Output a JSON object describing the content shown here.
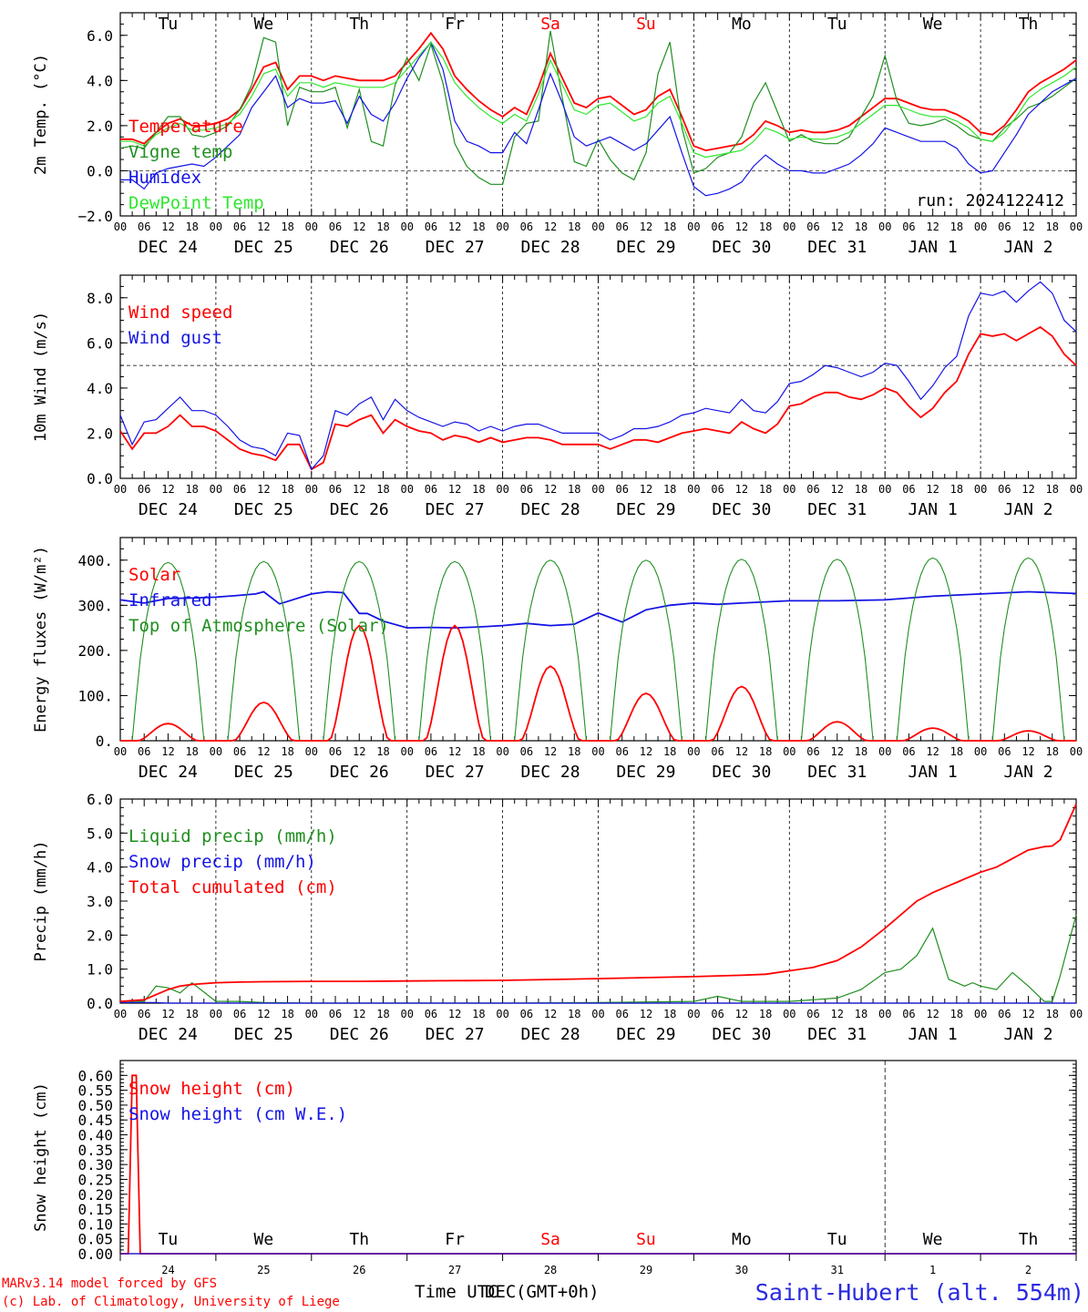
{
  "colors": {
    "red": "#ff0000",
    "darkgreen": "#1f8f1f",
    "blue": "#1414e6",
    "lightgreen": "#2ee82e",
    "weekend": "#ff0000",
    "text": "#000000",
    "station": "#2a2ae0"
  },
  "days": {
    "names": [
      "Tu",
      "We",
      "Th",
      "Fr",
      "Sa",
      "Su",
      "Mo",
      "Tu",
      "We",
      "Th"
    ],
    "weekend_flags": [
      false,
      false,
      false,
      false,
      true,
      true,
      false,
      false,
      false,
      false
    ],
    "dates": [
      "DEC 24",
      "DEC 25",
      "DEC 26",
      "DEC 27",
      "DEC 28",
      "DEC 29",
      "DEC 30",
      "DEC 31",
      "JAN  1",
      "JAN  2"
    ],
    "hour_ticks": [
      "00",
      "06",
      "12",
      "18"
    ],
    "end_tick": "00",
    "bottom_numbers": [
      "24",
      "25",
      "26",
      "27",
      "28",
      "29",
      "30",
      "31",
      "1",
      "2"
    ]
  },
  "footer": {
    "model": "MARv3.14 model forced by GFS",
    "lab": "(c) Lab. of Climatology, University of Liege",
    "xlabel_a": "Time UTC",
    "xlabel_b": "DEC",
    "xlabel_c": "(GMT+0h)",
    "station": "Saint-Hubert (alt. 554m)"
  },
  "chart_data": [
    {
      "type": "line",
      "ylabel": "2m Temp. (°C)",
      "ylim": [
        -2,
        7
      ],
      "yticks": [
        -2,
        0,
        2,
        4,
        6
      ],
      "ytick_labels": [
        "−2.0",
        "0.0",
        "2.0",
        "4.0",
        "6.0"
      ],
      "reference_line": 0,
      "annotation": "run: 2024122412",
      "x_hours": [
        0,
        3,
        6,
        9,
        12,
        15,
        18,
        21,
        24,
        27,
        30,
        33,
        36,
        39,
        42,
        45,
        48,
        51,
        54,
        57,
        60,
        63,
        66,
        69,
        72,
        75,
        78,
        81,
        84,
        87,
        90,
        93,
        96,
        99,
        102,
        105,
        108,
        111,
        114,
        117,
        120,
        123,
        126,
        129,
        132,
        135,
        138,
        141,
        144,
        147,
        150,
        153,
        156,
        159,
        162,
        165,
        168,
        171,
        174,
        177,
        180,
        183,
        186,
        189,
        192,
        195,
        198,
        201,
        204,
        207,
        210,
        213,
        216,
        219,
        222,
        225,
        228,
        231,
        234,
        237,
        240
      ],
      "series": [
        {
          "name": "Temperature",
          "color": "red",
          "values": [
            1.4,
            1.4,
            1.2,
            1.7,
            2.1,
            2.3,
            2.0,
            2.0,
            2.1,
            2.3,
            2.7,
            3.6,
            4.6,
            4.8,
            3.6,
            4.2,
            4.2,
            4.0,
            4.2,
            4.1,
            4.0,
            4.0,
            4.0,
            4.2,
            4.8,
            5.4,
            6.1,
            5.4,
            4.2,
            3.6,
            3.1,
            2.7,
            2.4,
            2.8,
            2.5,
            3.7,
            5.2,
            4.1,
            3.0,
            2.8,
            3.2,
            3.3,
            2.9,
            2.5,
            2.7,
            3.3,
            3.6,
            2.4,
            1.1,
            0.9,
            1.0,
            1.1,
            1.2,
            1.6,
            2.2,
            2.0,
            1.7,
            1.8,
            1.7,
            1.7,
            1.8,
            2.0,
            2.4,
            2.8,
            3.2,
            3.2,
            3.0,
            2.8,
            2.7,
            2.7,
            2.5,
            2.2,
            1.7,
            1.6,
            2.0,
            2.7,
            3.5,
            3.9,
            4.2,
            4.5,
            4.9
          ]
        },
        {
          "name": "Vigne temp",
          "color": "darkgreen",
          "values": [
            1.0,
            1.1,
            1.0,
            1.7,
            2.4,
            2.4,
            1.6,
            1.5,
            1.7,
            2.0,
            2.7,
            3.8,
            5.9,
            5.7,
            2.0,
            3.7,
            3.5,
            3.5,
            3.7,
            1.9,
            3.6,
            1.3,
            1.1,
            3.8,
            5.0,
            4.0,
            5.6,
            3.9,
            1.2,
            0.2,
            -0.3,
            -0.6,
            -0.6,
            1.5,
            2.1,
            2.2,
            6.2,
            3.2,
            0.4,
            0.2,
            1.4,
            0.5,
            -0.1,
            -0.4,
            0.8,
            4.3,
            5.7,
            1.9,
            -0.1,
            0.1,
            0.6,
            0.8,
            1.5,
            3.0,
            3.9,
            2.6,
            1.3,
            1.6,
            1.3,
            1.2,
            1.2,
            1.5,
            2.4,
            3.3,
            5.1,
            3.1,
            2.1,
            2.0,
            2.1,
            2.3,
            2.0,
            1.6,
            1.4,
            1.3,
            1.9,
            2.3,
            2.8,
            3.0,
            3.3,
            3.7,
            4.1
          ]
        },
        {
          "name": "Humidex",
          "color": "blue",
          "values": [
            -0.4,
            -0.4,
            -0.8,
            -0.1,
            0.1,
            0.2,
            0.3,
            0.2,
            0.6,
            1.1,
            1.6,
            2.8,
            3.5,
            4.2,
            2.8,
            3.2,
            3.0,
            3.0,
            3.1,
            2.1,
            3.3,
            2.5,
            2.2,
            3.0,
            4.1,
            5.0,
            5.7,
            4.5,
            2.2,
            1.3,
            1.1,
            0.8,
            0.8,
            1.7,
            1.2,
            2.7,
            4.3,
            3.0,
            1.5,
            1.1,
            1.3,
            1.5,
            1.2,
            0.9,
            1.2,
            1.8,
            2.4,
            0.8,
            -0.7,
            -1.1,
            -1.0,
            -0.8,
            -0.5,
            0.2,
            0.7,
            0.3,
            0.0,
            0.0,
            -0.1,
            -0.1,
            0.1,
            0.3,
            0.7,
            1.2,
            1.9,
            1.7,
            1.5,
            1.3,
            1.3,
            1.3,
            1.0,
            0.3,
            -0.1,
            0.0,
            0.8,
            1.6,
            2.5,
            3.0,
            3.5,
            3.8,
            4.1
          ]
        },
        {
          "name": "DewPoint Temp",
          "color": "lightgreen",
          "values": [
            1.3,
            1.3,
            1.1,
            1.6,
            1.9,
            2.1,
            1.8,
            1.8,
            1.9,
            2.1,
            2.5,
            3.3,
            4.3,
            4.5,
            3.3,
            3.9,
            3.9,
            3.7,
            3.9,
            3.8,
            3.7,
            3.7,
            3.7,
            3.9,
            4.5,
            5.1,
            5.7,
            5.0,
            3.9,
            3.3,
            2.8,
            2.4,
            2.1,
            2.5,
            2.2,
            3.4,
            4.9,
            3.8,
            2.7,
            2.5,
            2.9,
            3.0,
            2.6,
            2.2,
            2.4,
            3.0,
            3.3,
            2.1,
            0.8,
            0.6,
            0.7,
            0.8,
            0.9,
            1.3,
            1.9,
            1.7,
            1.4,
            1.5,
            1.4,
            1.4,
            1.5,
            1.7,
            2.1,
            2.5,
            2.9,
            2.9,
            2.7,
            2.5,
            2.4,
            2.4,
            2.2,
            1.9,
            1.4,
            1.3,
            1.7,
            2.4,
            3.2,
            3.6,
            3.9,
            4.2,
            4.6
          ]
        }
      ]
    },
    {
      "type": "line",
      "ylabel": "10m Wind (m/s)",
      "ylim": [
        0,
        9
      ],
      "yticks": [
        0,
        2,
        4,
        6,
        8
      ],
      "ytick_labels": [
        "0.0",
        "2.0",
        "4.0",
        "6.0",
        "8.0"
      ],
      "reference_line": 5,
      "x_hours": [
        0,
        3,
        6,
        9,
        12,
        15,
        18,
        21,
        24,
        27,
        30,
        33,
        36,
        39,
        42,
        45,
        48,
        51,
        54,
        57,
        60,
        63,
        66,
        69,
        72,
        75,
        78,
        81,
        84,
        87,
        90,
        93,
        96,
        99,
        102,
        105,
        108,
        111,
        114,
        117,
        120,
        123,
        126,
        129,
        132,
        135,
        138,
        141,
        144,
        147,
        150,
        153,
        156,
        159,
        162,
        165,
        168,
        171,
        174,
        177,
        180,
        183,
        186,
        189,
        192,
        195,
        198,
        201,
        204,
        207,
        210,
        213,
        216,
        219,
        222,
        225,
        228,
        231,
        234,
        237,
        240
      ],
      "series": [
        {
          "name": "Wind speed",
          "color": "red",
          "values": [
            2.1,
            1.3,
            2.0,
            2.0,
            2.3,
            2.8,
            2.3,
            2.3,
            2.1,
            1.7,
            1.3,
            1.1,
            1.0,
            0.8,
            1.5,
            1.5,
            0.4,
            0.7,
            2.4,
            2.3,
            2.6,
            2.8,
            2.0,
            2.6,
            2.3,
            2.1,
            2.0,
            1.7,
            1.9,
            1.8,
            1.6,
            1.8,
            1.6,
            1.7,
            1.8,
            1.8,
            1.7,
            1.5,
            1.5,
            1.5,
            1.5,
            1.3,
            1.5,
            1.7,
            1.7,
            1.6,
            1.8,
            2.0,
            2.1,
            2.2,
            2.1,
            2.0,
            2.5,
            2.2,
            2.0,
            2.4,
            3.2,
            3.3,
            3.6,
            3.8,
            3.8,
            3.6,
            3.5,
            3.7,
            4.0,
            3.8,
            3.2,
            2.7,
            3.1,
            3.8,
            4.3,
            5.5,
            6.4,
            6.3,
            6.4,
            6.1,
            6.4,
            6.7,
            6.3,
            5.5,
            5.0
          ]
        },
        {
          "name": "Wind gust",
          "color": "blue",
          "values": [
            2.8,
            1.5,
            2.5,
            2.6,
            3.1,
            3.6,
            3.0,
            3.0,
            2.8,
            2.3,
            1.7,
            1.4,
            1.3,
            1.0,
            2.0,
            1.9,
            0.4,
            1.0,
            3.0,
            2.8,
            3.3,
            3.6,
            2.6,
            3.5,
            3.0,
            2.7,
            2.5,
            2.3,
            2.5,
            2.4,
            2.1,
            2.3,
            2.1,
            2.3,
            2.4,
            2.4,
            2.2,
            2.0,
            2.0,
            2.0,
            2.0,
            1.7,
            1.9,
            2.2,
            2.2,
            2.3,
            2.5,
            2.8,
            2.9,
            3.1,
            3.0,
            2.9,
            3.5,
            3.0,
            2.9,
            3.4,
            4.2,
            4.3,
            4.6,
            5.0,
            4.9,
            4.7,
            4.5,
            4.7,
            5.1,
            5.0,
            4.3,
            3.5,
            4.1,
            4.9,
            5.4,
            7.2,
            8.2,
            8.1,
            8.3,
            7.8,
            8.3,
            8.7,
            8.2,
            7.0,
            6.5
          ]
        }
      ]
    },
    {
      "type": "line",
      "ylabel": "Energy fluxes (W/m²)",
      "ylim": [
        0,
        450
      ],
      "yticks": [
        0,
        100,
        200,
        300,
        400
      ],
      "ytick_labels": [
        "0.",
        "100.",
        "200.",
        "300.",
        "400."
      ],
      "solar_peaks": [
        38,
        85,
        255,
        255,
        165,
        105,
        120,
        42,
        28,
        22
      ],
      "toa_peaks": [
        395,
        397,
        397,
        397,
        400,
        400,
        402,
        402,
        405,
        405
      ],
      "x_hours_infrared": [
        0,
        6,
        12,
        18,
        24,
        30,
        34,
        36,
        40,
        48,
        52,
        56,
        60,
        62,
        66,
        72,
        78,
        84,
        90,
        96,
        102,
        108,
        114,
        120,
        126,
        132,
        138,
        144,
        150,
        156,
        168,
        180,
        192,
        204,
        216,
        228,
        240
      ],
      "series": [
        {
          "name": "Solar",
          "color": "red"
        },
        {
          "name": "Infrared",
          "color": "blue",
          "values": [
            312,
            305,
            315,
            316,
            318,
            322,
            325,
            330,
            303,
            325,
            330,
            328,
            282,
            282,
            265,
            250,
            251,
            250,
            252,
            255,
            260,
            255,
            258,
            283,
            263,
            290,
            300,
            305,
            302,
            305,
            310,
            310,
            312,
            320,
            325,
            330,
            326
          ]
        },
        {
          "name": "Top of Atmosphere (Solar)",
          "color": "darkgreen"
        }
      ]
    },
    {
      "type": "line",
      "ylabel": "Precip (mm/h)",
      "ylim": [
        0,
        6
      ],
      "yticks": [
        0,
        1,
        2,
        3,
        4,
        5,
        6
      ],
      "ytick_labels": [
        "0.0",
        "1.0",
        "2.0",
        "3.0",
        "4.0",
        "5.0",
        "6.0"
      ],
      "x_hours": [
        0,
        6,
        9,
        12,
        15,
        18,
        24,
        30,
        36,
        48,
        60,
        72,
        96,
        120,
        144,
        150,
        156,
        162,
        168,
        174,
        180,
        186,
        192,
        196,
        200,
        204,
        208,
        210,
        212,
        214,
        216,
        220,
        224,
        228,
        232,
        234,
        236,
        240
      ],
      "series": [
        {
          "name": "Liquid precip (mm/h)",
          "color": "darkgreen",
          "values": [
            0.05,
            0.05,
            0.5,
            0.45,
            0.3,
            0.6,
            0.05,
            0.05,
            0.02,
            0.0,
            0.0,
            0.0,
            0.0,
            0.02,
            0.05,
            0.2,
            0.05,
            0.05,
            0.05,
            0.1,
            0.15,
            0.4,
            0.9,
            1.0,
            1.4,
            2.2,
            0.7,
            0.6,
            0.5,
            0.6,
            0.5,
            0.4,
            0.9,
            0.5,
            0.05,
            0.05,
            0.8,
            2.6
          ]
        },
        {
          "name": "Snow precip (mm/h)",
          "color": "blue",
          "values": [
            0.02,
            0.02,
            0.02,
            0.0,
            0.0,
            0.0,
            0.0,
            0.0,
            0.0,
            0.0,
            0.0,
            0.0,
            0.0,
            0.0,
            0.0,
            0.0,
            0.0,
            0.0,
            0.0,
            0.0,
            0.0,
            0.0,
            0.0,
            0.0,
            0.0,
            0.0,
            0.0,
            0.0,
            0.0,
            0.0,
            0.0,
            0.0,
            0.0,
            0.0,
            0.0,
            0.0,
            0.0,
            0.0
          ]
        },
        {
          "name": "Total cumulated (cm)",
          "color": "red",
          "values": [
            0.05,
            0.1,
            0.25,
            0.4,
            0.5,
            0.55,
            0.6,
            0.62,
            0.63,
            0.64,
            0.64,
            0.65,
            0.67,
            0.72,
            0.78,
            0.8,
            0.82,
            0.85,
            0.95,
            1.05,
            1.25,
            1.65,
            2.2,
            2.6,
            3.0,
            3.25,
            3.45,
            3.55,
            3.65,
            3.75,
            3.85,
            4.0,
            4.25,
            4.5,
            4.6,
            4.62,
            4.8,
            5.85
          ]
        }
      ]
    },
    {
      "type": "line",
      "ylabel": "Snow height (cm)",
      "ylim": [
        0,
        0.65
      ],
      "yticks": [
        0,
        0.05,
        0.1,
        0.15,
        0.2,
        0.25,
        0.3,
        0.35,
        0.4,
        0.45,
        0.5,
        0.55,
        0.6
      ],
      "ytick_labels": [
        "0.00",
        "0.05",
        "0.10",
        "0.15",
        "0.20",
        "0.25",
        "0.30",
        "0.35",
        "0.40",
        "0.45",
        "0.50",
        "0.55",
        "0.60"
      ],
      "x_hours": [
        0,
        2,
        3,
        4,
        5,
        240
      ],
      "series": [
        {
          "name": "Snow height (cm)",
          "color": "red",
          "values": [
            0,
            0,
            0.6,
            0.6,
            0,
            0
          ]
        },
        {
          "name": "Snow height (cm W.E.)",
          "color": "blue",
          "values": [
            0,
            0,
            0,
            0,
            0,
            0
          ]
        }
      ]
    }
  ]
}
